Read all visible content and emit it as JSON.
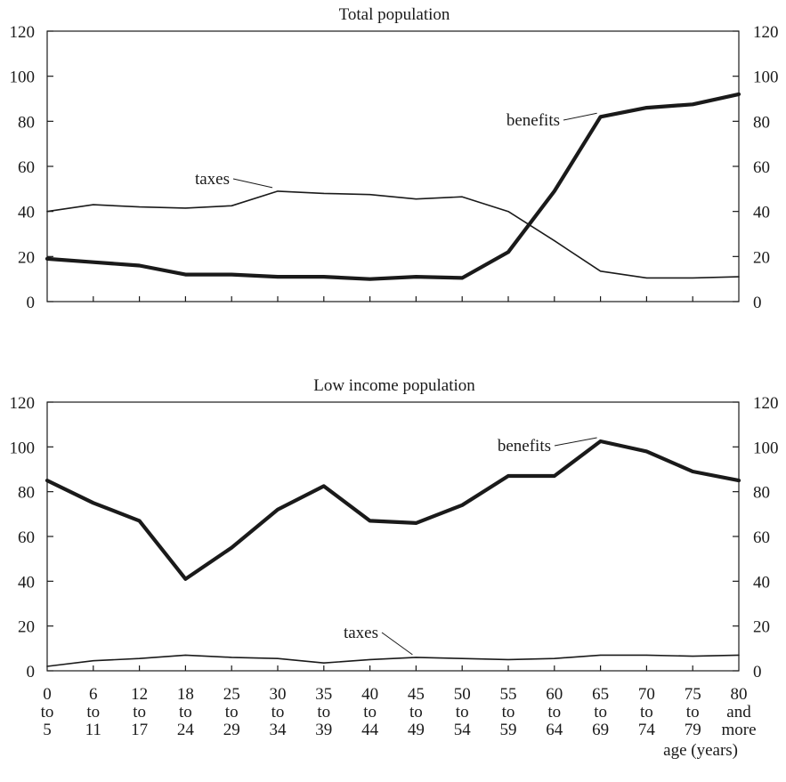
{
  "chart_data": [
    {
      "type": "line",
      "title": "Total population",
      "ylim": [
        0,
        120
      ],
      "yticks": [
        0,
        20,
        40,
        60,
        80,
        100,
        120
      ],
      "categories": [
        {
          "top": "0",
          "mid": "to",
          "bot": "5"
        },
        {
          "top": "6",
          "mid": "to",
          "bot": "11"
        },
        {
          "top": "12",
          "mid": "to",
          "bot": "17"
        },
        {
          "top": "18",
          "mid": "to",
          "bot": "24"
        },
        {
          "top": "25",
          "mid": "to",
          "bot": "29"
        },
        {
          "top": "30",
          "mid": "to",
          "bot": "34"
        },
        {
          "top": "35",
          "mid": "to",
          "bot": "39"
        },
        {
          "top": "40",
          "mid": "to",
          "bot": "44"
        },
        {
          "top": "45",
          "mid": "to",
          "bot": "49"
        },
        {
          "top": "50",
          "mid": "to",
          "bot": "54"
        },
        {
          "top": "55",
          "mid": "to",
          "bot": "59"
        },
        {
          "top": "60",
          "mid": "to",
          "bot": "64"
        },
        {
          "top": "65",
          "mid": "to",
          "bot": "69"
        },
        {
          "top": "70",
          "mid": "to",
          "bot": "74"
        },
        {
          "top": "75",
          "mid": "to",
          "bot": "79"
        },
        {
          "top": "80",
          "mid": "and",
          "bot": "more"
        }
      ],
      "series": [
        {
          "name": "taxes",
          "values": [
            40,
            43,
            42,
            41.5,
            42.5,
            49,
            48,
            47.5,
            45.5,
            46.5,
            40,
            27,
            13.5,
            10.5,
            10.5,
            11
          ],
          "emphasis": "thin"
        },
        {
          "name": "benefits",
          "values": [
            19,
            17.5,
            16,
            12,
            12,
            11,
            11,
            10,
            11,
            10.5,
            22,
            49,
            82,
            86,
            87.5,
            92
          ],
          "emphasis": "thick"
        }
      ],
      "annotations": [
        {
          "text": "taxes",
          "series": "taxes",
          "point_index": 5
        },
        {
          "text": "benefits",
          "series": "benefits",
          "point_index": 12
        }
      ],
      "grid": false,
      "legend": "none"
    },
    {
      "type": "line",
      "title": "Low income population",
      "ylim": [
        0,
        120
      ],
      "yticks": [
        0,
        20,
        40,
        60,
        80,
        100,
        120
      ],
      "xlabel": "age (years)",
      "categories": [
        {
          "top": "0",
          "mid": "to",
          "bot": "5"
        },
        {
          "top": "6",
          "mid": "to",
          "bot": "11"
        },
        {
          "top": "12",
          "mid": "to",
          "bot": "17"
        },
        {
          "top": "18",
          "mid": "to",
          "bot": "24"
        },
        {
          "top": "25",
          "mid": "to",
          "bot": "29"
        },
        {
          "top": "30",
          "mid": "to",
          "bot": "34"
        },
        {
          "top": "35",
          "mid": "to",
          "bot": "39"
        },
        {
          "top": "40",
          "mid": "to",
          "bot": "44"
        },
        {
          "top": "45",
          "mid": "to",
          "bot": "49"
        },
        {
          "top": "50",
          "mid": "to",
          "bot": "54"
        },
        {
          "top": "55",
          "mid": "to",
          "bot": "59"
        },
        {
          "top": "60",
          "mid": "to",
          "bot": "64"
        },
        {
          "top": "65",
          "mid": "to",
          "bot": "69"
        },
        {
          "top": "70",
          "mid": "to",
          "bot": "74"
        },
        {
          "top": "75",
          "mid": "to",
          "bot": "79"
        },
        {
          "top": "80",
          "mid": "and",
          "bot": "more"
        }
      ],
      "series": [
        {
          "name": "taxes",
          "values": [
            2,
            4.5,
            5.5,
            7,
            6,
            5.5,
            3.5,
            5,
            6,
            5.5,
            5,
            5.5,
            7,
            7,
            6.5,
            7
          ],
          "emphasis": "thin"
        },
        {
          "name": "benefits",
          "values": [
            85,
            75,
            67,
            41,
            55,
            72,
            82.5,
            67,
            66,
            74,
            87,
            87,
            102.5,
            98,
            89,
            85
          ],
          "emphasis": "thick"
        }
      ],
      "annotations": [
        {
          "text": "taxes",
          "series": "taxes",
          "point_index": 8
        },
        {
          "text": "benefits",
          "series": "benefits",
          "point_index": 12
        }
      ],
      "grid": false,
      "legend": "none"
    }
  ]
}
